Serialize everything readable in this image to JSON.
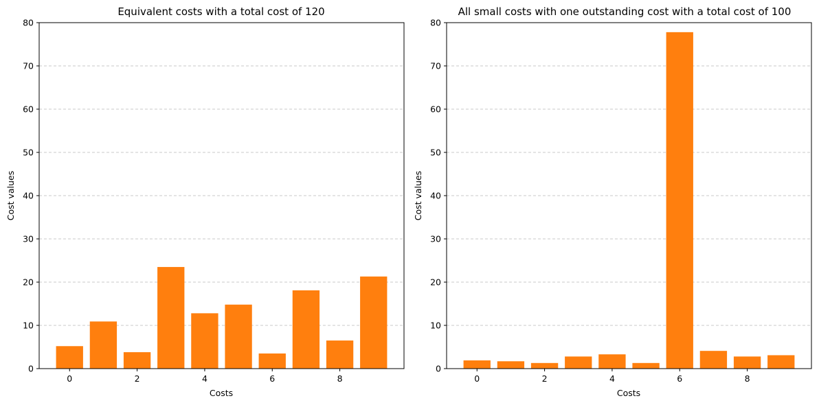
{
  "chart_data": [
    {
      "type": "bar",
      "title": "Equivalent costs with a total cost of 120",
      "xlabel": "Costs",
      "ylabel": "Cost values",
      "x": [
        0,
        1,
        2,
        3,
        4,
        5,
        6,
        7,
        8,
        9
      ],
      "values": [
        5.2,
        10.9,
        3.8,
        23.5,
        12.8,
        14.8,
        3.5,
        18.1,
        6.5,
        21.3
      ],
      "xlim": [
        -0.9,
        9.9
      ],
      "ylim": [
        0,
        80
      ],
      "xticks": [
        0,
        2,
        4,
        6,
        8
      ],
      "yticks": [
        0,
        10,
        20,
        30,
        40,
        50,
        60,
        70,
        80
      ],
      "bar_color": "#ff7f0e",
      "grid": "y-dashed"
    },
    {
      "type": "bar",
      "title": "All small costs with one outstanding cost with a total cost of 100",
      "xlabel": "Costs",
      "ylabel": "Cost values",
      "x": [
        0,
        1,
        2,
        3,
        4,
        5,
        6,
        7,
        8,
        9
      ],
      "values": [
        1.9,
        1.7,
        1.3,
        2.8,
        3.3,
        1.3,
        77.8,
        4.1,
        2.8,
        3.1
      ],
      "xlim": [
        -0.9,
        9.9
      ],
      "ylim": [
        0,
        80
      ],
      "xticks": [
        0,
        2,
        4,
        6,
        8
      ],
      "yticks": [
        0,
        10,
        20,
        30,
        40,
        50,
        60,
        70,
        80
      ],
      "bar_color": "#ff7f0e",
      "grid": "y-dashed"
    }
  ]
}
